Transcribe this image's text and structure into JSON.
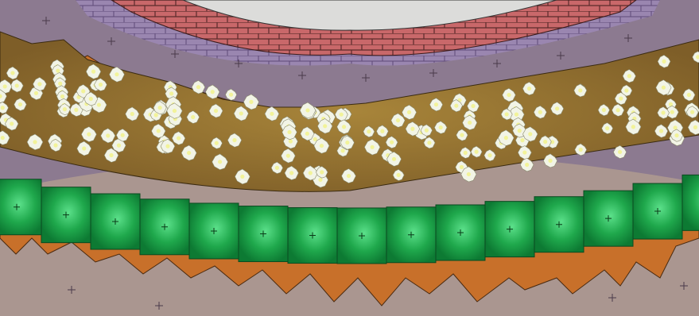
{
  "scene": {
    "type": "tile-map",
    "description_terrain": [
      "brick-wall",
      "lavender-floor",
      "flower-field",
      "grass-tiles",
      "dirt-border",
      "stone-floor"
    ],
    "colors": {
      "sky_white": "#dcdcda",
      "brick_red": "#c9686a",
      "brick_mortar": "#5a2a2a",
      "purple_floor": "#8c7a90",
      "lavender_brick": "#9a86b0",
      "dirt_orange": "#c8702a",
      "flower_field_bg": "#8c6a2e",
      "flower_white": "#f2f4e6",
      "flower_center": "#f2f39a",
      "grass_dark": "#0f8a3a",
      "grass_light": "#3fd46e",
      "stone_floor": "#aa9690"
    }
  }
}
